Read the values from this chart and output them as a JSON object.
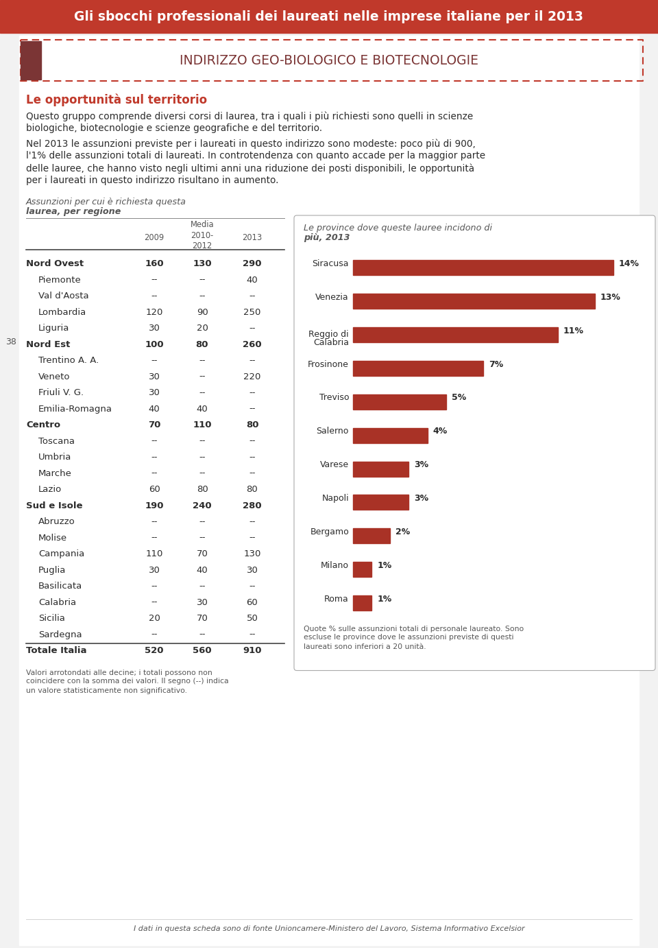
{
  "header_text": "Gli sbocchi professionali dei laureati nelle imprese italiane per il 2013",
  "header_bg": "#c0392b",
  "header_text_color": "#ffffff",
  "section_title": "INDIRIZZO GEO-BIOLOGICO E BIOTECNOLOGIE",
  "section_title_color": "#7b3535",
  "subtitle": "Le opportunità sul territorio",
  "subtitle_color": "#c0392b",
  "para1_lines": [
    "Questo gruppo comprende diversi corsi di laurea, tra i quali i più richiesti sono quelli in scienze",
    "biologiche, biotecnologie e scienze geografiche e del territorio."
  ],
  "para2_lines": [
    "Nel 2013 le assunzioni previste per i laureati in questo indirizzo sono modeste: poco più di 900,",
    "l'1% delle assunzioni totali di laureati. In controtendenza con quanto accade per la maggior parte",
    "delle lauree, che hanno visto negli ultimi anni una riduzione dei posti disponibili, le opportunità",
    "per i laureati in questo indirizzo risultano in aumento."
  ],
  "left_col_title_line1": "Assunzioni per cui è richiesta questa",
  "left_col_title_line2": "laurea, per regione",
  "page_number": "38",
  "table_rows": [
    {
      "label": "Nord Ovest",
      "bold": true,
      "indent": false,
      "v2009": "160",
      "vmedia": "130",
      "v2013": "290"
    },
    {
      "label": "Piemonte",
      "bold": false,
      "indent": true,
      "v2009": "--",
      "vmedia": "--",
      "v2013": "40"
    },
    {
      "label": "Val d'Aosta",
      "bold": false,
      "indent": true,
      "v2009": "--",
      "vmedia": "--",
      "v2013": "--"
    },
    {
      "label": "Lombardia",
      "bold": false,
      "indent": true,
      "v2009": "120",
      "vmedia": "90",
      "v2013": "250"
    },
    {
      "label": "Liguria",
      "bold": false,
      "indent": true,
      "v2009": "30",
      "vmedia": "20",
      "v2013": "--"
    },
    {
      "label": "Nord Est",
      "bold": true,
      "indent": false,
      "v2009": "100",
      "vmedia": "80",
      "v2013": "260"
    },
    {
      "label": "Trentino A. A.",
      "bold": false,
      "indent": true,
      "v2009": "--",
      "vmedia": "--",
      "v2013": "--"
    },
    {
      "label": "Veneto",
      "bold": false,
      "indent": true,
      "v2009": "30",
      "vmedia": "--",
      "v2013": "220"
    },
    {
      "label": "Friuli V. G.",
      "bold": false,
      "indent": true,
      "v2009": "30",
      "vmedia": "--",
      "v2013": "--"
    },
    {
      "label": "Emilia-Romagna",
      "bold": false,
      "indent": true,
      "v2009": "40",
      "vmedia": "40",
      "v2013": "--"
    },
    {
      "label": "Centro",
      "bold": true,
      "indent": false,
      "v2009": "70",
      "vmedia": "110",
      "v2013": "80"
    },
    {
      "label": "Toscana",
      "bold": false,
      "indent": true,
      "v2009": "--",
      "vmedia": "--",
      "v2013": "--"
    },
    {
      "label": "Umbria",
      "bold": false,
      "indent": true,
      "v2009": "--",
      "vmedia": "--",
      "v2013": "--"
    },
    {
      "label": "Marche",
      "bold": false,
      "indent": true,
      "v2009": "--",
      "vmedia": "--",
      "v2013": "--"
    },
    {
      "label": "Lazio",
      "bold": false,
      "indent": true,
      "v2009": "60",
      "vmedia": "80",
      "v2013": "80"
    },
    {
      "label": "Sud e Isole",
      "bold": true,
      "indent": false,
      "v2009": "190",
      "vmedia": "240",
      "v2013": "280"
    },
    {
      "label": "Abruzzo",
      "bold": false,
      "indent": true,
      "v2009": "--",
      "vmedia": "--",
      "v2013": "--"
    },
    {
      "label": "Molise",
      "bold": false,
      "indent": true,
      "v2009": "--",
      "vmedia": "--",
      "v2013": "--"
    },
    {
      "label": "Campania",
      "bold": false,
      "indent": true,
      "v2009": "110",
      "vmedia": "70",
      "v2013": "130"
    },
    {
      "label": "Puglia",
      "bold": false,
      "indent": true,
      "v2009": "30",
      "vmedia": "40",
      "v2013": "30"
    },
    {
      "label": "Basilicata",
      "bold": false,
      "indent": true,
      "v2009": "--",
      "vmedia": "--",
      "v2013": "--"
    },
    {
      "label": "Calabria",
      "bold": false,
      "indent": true,
      "v2009": "--",
      "vmedia": "30",
      "v2013": "60"
    },
    {
      "label": "Sicilia",
      "bold": false,
      "indent": true,
      "v2009": "20",
      "vmedia": "70",
      "v2013": "50"
    },
    {
      "label": "Sardegna",
      "bold": false,
      "indent": true,
      "v2009": "--",
      "vmedia": "--",
      "v2013": "--"
    },
    {
      "label": "Totale Italia",
      "bold": true,
      "indent": false,
      "v2009": "520",
      "vmedia": "560",
      "v2013": "910"
    }
  ],
  "footnote_left_lines": [
    "Valori arrotondati alle decine; i totali possono non",
    "coincidere con la somma dei valori. Il segno (--) indica",
    "un valore statisticamente non significativo."
  ],
  "right_col_title_line1": "Le province dove queste lauree incidono di",
  "right_col_title_line2": "più, 2013",
  "bar_data": [
    {
      "label": "Siracusa",
      "label2": null,
      "value": 14
    },
    {
      "label": "Venezia",
      "label2": null,
      "value": 13
    },
    {
      "label": "Reggio di",
      "label2": "Calabria",
      "value": 11
    },
    {
      "label": "Frosinone",
      "label2": null,
      "value": 7
    },
    {
      "label": "Treviso",
      "label2": null,
      "value": 5
    },
    {
      "label": "Salerno",
      "label2": null,
      "value": 4
    },
    {
      "label": "Varese",
      "label2": null,
      "value": 3
    },
    {
      "label": "Napoli",
      "label2": null,
      "value": 3
    },
    {
      "label": "Bergamo",
      "label2": null,
      "value": 2
    },
    {
      "label": "Milano",
      "label2": null,
      "value": 1
    },
    {
      "label": "Roma",
      "label2": null,
      "value": 1
    }
  ],
  "bar_color": "#a93226",
  "footnote_right_lines": [
    "Quote % sulle assunzioni totali di personale laureato. Sono",
    "escluse le province dove le assunzioni previste di questi",
    "laureati sono inferiori a 20 unità."
  ],
  "footer_text": "I dati in questa scheda sono di fonte Unioncamere-Ministero del Lavoro, Sistema Informativo Excelsior",
  "bg_color": "#f5f5f5",
  "white": "#ffffff",
  "text_color": "#2c2c2c",
  "muted_color": "#555555",
  "dark_red": "#7b3535",
  "border_red": "#c0392b",
  "border_gray": "#aaaaaa"
}
